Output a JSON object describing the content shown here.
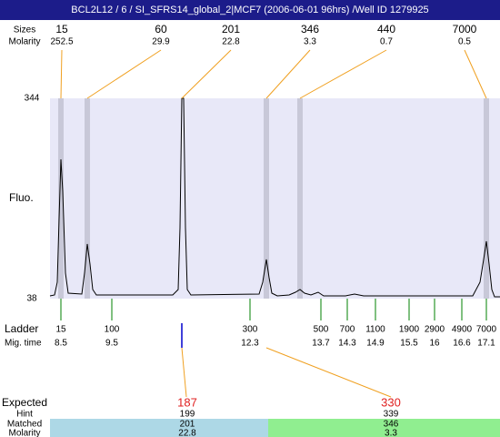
{
  "title": "BCL2L12 / 6 / SI_SFRS14_global_2|MCF7 (2006-06-01 96hrs) /Well ID 1279925",
  "peaks": {
    "size_label": "Sizes",
    "molarity_label": "Molarity",
    "items": [
      {
        "size": 15,
        "molarity": 252.5
      },
      {
        "size": 60,
        "molarity": 29.9
      },
      {
        "size": 201,
        "molarity": 22.8
      },
      {
        "size": 346,
        "molarity": 3.3
      },
      {
        "size": 440,
        "molarity": 0.7
      },
      {
        "size": 7000,
        "molarity": 0.5
      }
    ]
  },
  "axis": {
    "label": "Fluo.",
    "top": 344,
    "bottom": 38
  },
  "ladder": {
    "label": "Ladder",
    "time_label": "Mig. time",
    "items": [
      {
        "size": 15,
        "time": 8.5
      },
      {
        "size": 100,
        "time": 9.5
      },
      {
        "size": 300,
        "time": 12.3
      },
      {
        "size": 500,
        "time": 13.7
      },
      {
        "size": 700,
        "time": 14.3
      },
      {
        "size": 1100,
        "time": 14.9
      },
      {
        "size": 1900,
        "time": 15.5
      },
      {
        "size": 2900,
        "time": 16
      },
      {
        "size": 4900,
        "time": 16.6
      },
      {
        "size": 7000,
        "time": 17.1
      }
    ]
  },
  "expected": {
    "label": "Expected",
    "hint_label": "Hint",
    "matched_label": "Matched",
    "molarity_label": "Molarity",
    "items": [
      {
        "expected": 187,
        "hint": 199,
        "matched": 201,
        "molarity": 22.8
      },
      {
        "expected": 330,
        "hint": 339,
        "matched": 346,
        "molarity": 3.3
      }
    ]
  }
}
